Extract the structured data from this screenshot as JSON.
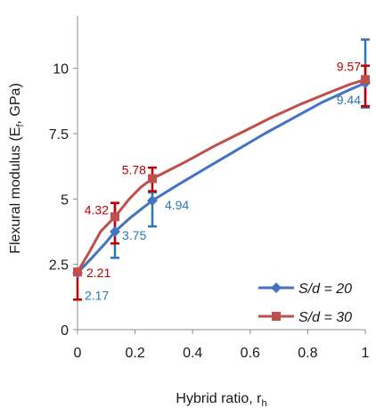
{
  "chart_data": {
    "type": "line",
    "title": "",
    "xlabel": "Hybrid ratio, r",
    "xlabel_sub": "h",
    "ylabel_pre": "Flexural modulus (E",
    "ylabel_sub": "f",
    "ylabel_post": ", GPa)",
    "xlim": [
      0,
      1
    ],
    "ylim": [
      0,
      12
    ],
    "x_ticks": [
      "0",
      "0.2",
      "0.4",
      "0.6",
      "0.8",
      "1"
    ],
    "y_ticks": [
      "0",
      "2.5",
      "5",
      "7.5",
      "10"
    ],
    "grid": false,
    "legend_position": "bottom-right",
    "series": [
      {
        "name": "S/d = 20",
        "color": "#4472c4",
        "label_color": "#2e75b6",
        "errbar_color": "#2e75b6",
        "marker": "diamond",
        "x": [
          0,
          0.13,
          0.26,
          1
        ],
        "y": [
          2.17,
          3.75,
          4.94,
          9.44
        ],
        "labels": [
          "2.17",
          "3.75",
          "4.94",
          "9.44"
        ],
        "err_low": [
          2.17,
          2.75,
          3.95,
          8.5
        ],
        "err_high": [
          2.17,
          4.85,
          5.25,
          11.1
        ],
        "curve": [
          [
            0,
            2.17
          ],
          [
            0.05,
            2.75
          ],
          [
            0.1,
            3.35
          ],
          [
            0.13,
            3.75
          ],
          [
            0.18,
            4.25
          ],
          [
            0.22,
            4.6
          ],
          [
            0.26,
            4.94
          ],
          [
            0.35,
            5.55
          ],
          [
            0.45,
            6.2
          ],
          [
            0.55,
            6.85
          ],
          [
            0.65,
            7.5
          ],
          [
            0.75,
            8.1
          ],
          [
            0.85,
            8.7
          ],
          [
            0.95,
            9.2
          ],
          [
            1,
            9.44
          ]
        ]
      },
      {
        "name": "S/d = 30",
        "color": "#c0504d",
        "label_color": "#c00000",
        "errbar_color": "#c00000",
        "marker": "square",
        "x": [
          0,
          0.13,
          0.26,
          1
        ],
        "y": [
          2.21,
          4.32,
          5.78,
          9.57
        ],
        "labels": [
          "2.21",
          "4.32",
          "5.78",
          "9.57"
        ],
        "err_low": [
          1.15,
          3.3,
          5.3,
          8.55
        ],
        "err_high": [
          2.21,
          4.85,
          6.2,
          10.1
        ],
        "curve": [
          [
            0,
            2.21
          ],
          [
            0.04,
            2.95
          ],
          [
            0.08,
            3.75
          ],
          [
            0.13,
            4.32
          ],
          [
            0.18,
            5.0
          ],
          [
            0.22,
            5.45
          ],
          [
            0.26,
            5.78
          ],
          [
            0.3,
            6.0
          ],
          [
            0.38,
            6.45
          ],
          [
            0.48,
            7.05
          ],
          [
            0.58,
            7.6
          ],
          [
            0.68,
            8.15
          ],
          [
            0.78,
            8.65
          ],
          [
            0.88,
            9.1
          ],
          [
            0.95,
            9.4
          ],
          [
            1,
            9.57
          ]
        ]
      }
    ]
  }
}
